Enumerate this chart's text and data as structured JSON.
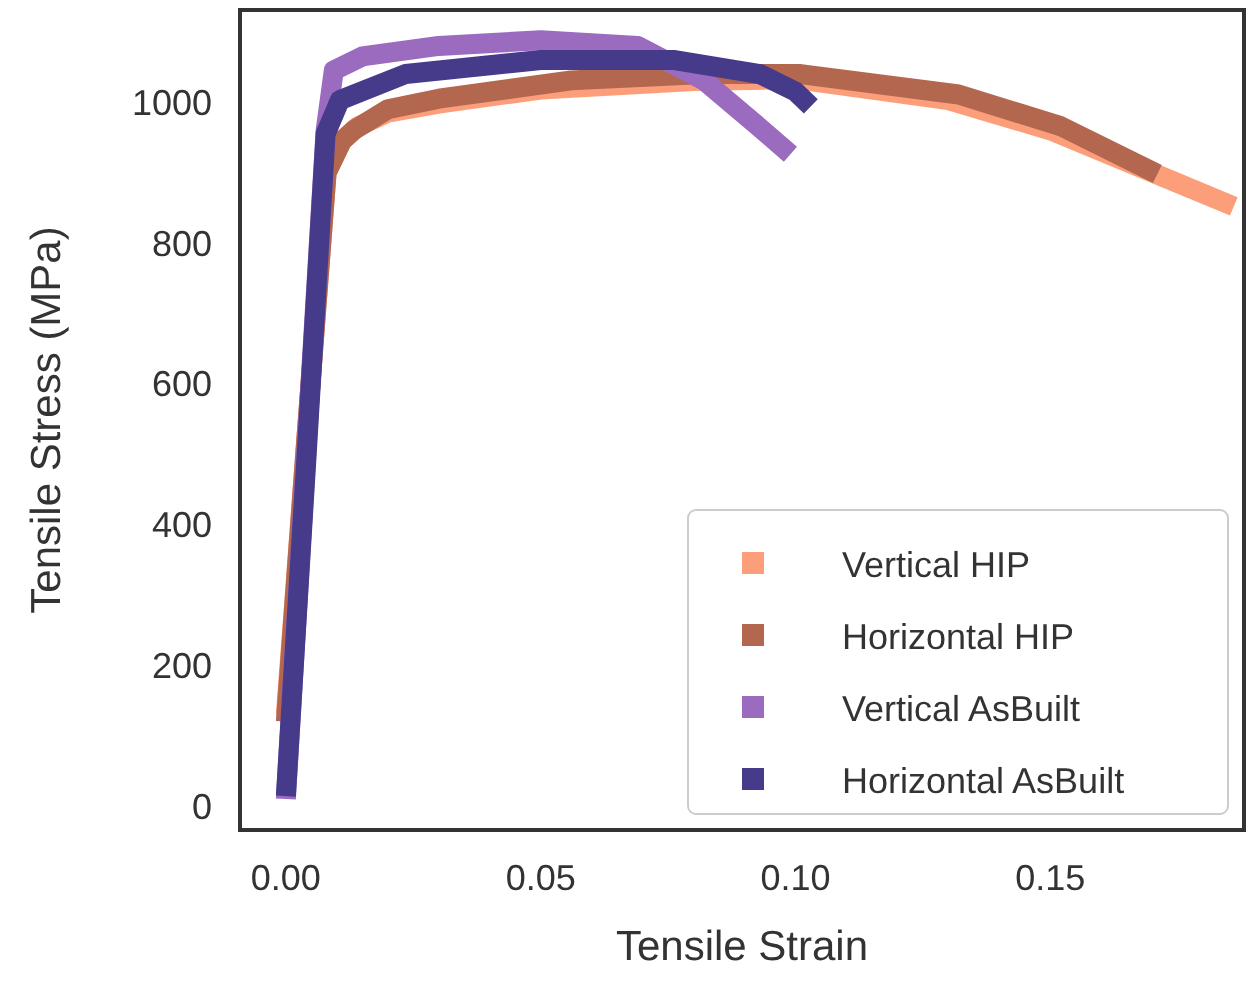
{
  "chart_data": {
    "type": "line",
    "xlabel": "Tensile Strain",
    "ylabel": "Tensile Stress (MPa)",
    "xlim": [
      -0.009,
      0.188
    ],
    "ylim": [
      -34,
      1131
    ],
    "xticks": [
      {
        "value": 0,
        "label": "0.00"
      },
      0.05,
      {
        "value": 0.1,
        "label": "0.10"
      },
      0.15
    ],
    "yticks": [
      0,
      200,
      400,
      600,
      800,
      1000
    ],
    "grid": false,
    "legend": "bottom right",
    "marker": "none",
    "line_style": "solid",
    "series": [
      {
        "name": "Vertical HIP",
        "color": "#fc9e7a",
        "x": [
          0,
          0.004,
          0.008,
          0.011,
          0.014,
          0.02,
          0.03,
          0.05,
          0.08,
          0.1,
          0.13,
          0.15,
          0.17,
          0.186
        ],
        "values": [
          130,
          520,
          900,
          945,
          965,
          985,
          998,
          1018,
          1030,
          1033,
          1003,
          960,
          900,
          852
        ]
      },
      {
        "name": "Horizontal HIP",
        "color": "#b3674f",
        "x": [
          0,
          0.004,
          0.008,
          0.011,
          0.0133,
          0.02,
          0.03,
          0.056,
          0.082,
          0.101,
          0.132,
          0.152,
          0.171
        ],
        "values": [
          120,
          520,
          900,
          945,
          960,
          990,
          1005,
          1031,
          1040,
          1040,
          1011,
          966,
          898
        ]
      },
      {
        "name": "Vertical AsBuilt",
        "color": "#9b6bc0",
        "x": [
          0,
          0.004,
          0.0078,
          0.0094,
          0.015,
          0.03,
          0.05,
          0.069,
          0.082,
          0.092,
          0.099
        ],
        "values": [
          10,
          500,
          960,
          1045,
          1065,
          1080,
          1088,
          1080,
          1031,
          970,
          926
        ]
      },
      {
        "name": "Horizontal AsBuilt",
        "color": "#463a8a",
        "x": [
          0,
          0.004,
          0.0078,
          0.0106,
          0.0235,
          0.05,
          0.076,
          0.093,
          0.1,
          0.103
        ],
        "values": [
          14,
          490,
          955,
          1003,
          1040,
          1060,
          1060,
          1040,
          1015,
          994
        ]
      }
    ]
  }
}
